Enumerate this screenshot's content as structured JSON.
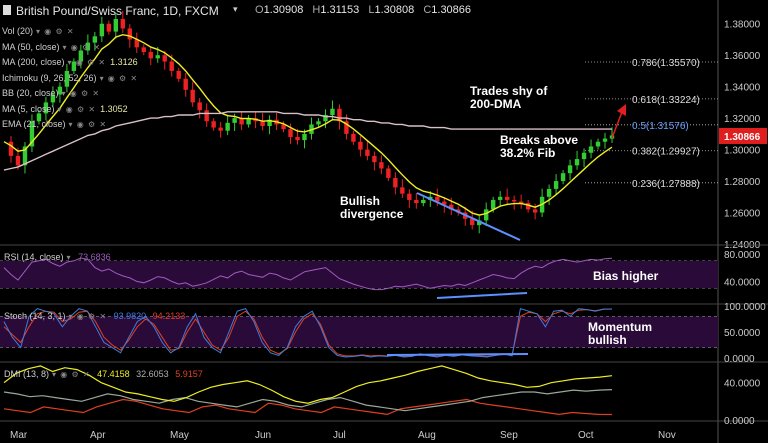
{
  "header": {
    "symbol": "British Pound/Swiss Franc, 1D, FXCM",
    "o_label": "O",
    "o": "1.30908",
    "h_label": "H",
    "h": "1.31153",
    "l_label": "L",
    "l": "1.30808",
    "c_label": "C",
    "c": "1.30866"
  },
  "indicators": [
    {
      "label": "Vol (20)",
      "value": ""
    },
    {
      "label": "MA (50, close)",
      "value": ""
    },
    {
      "label": "MA (200, close)",
      "value": "1.3126"
    },
    {
      "label": "Ichimoku (9, 26, 52, 26)",
      "value": ""
    },
    {
      "label": "BB (20, close)",
      "value": ""
    },
    {
      "label": "MA (5, close)",
      "value": "1.3052"
    },
    {
      "label": "EMA (21, close)",
      "value": ""
    }
  ],
  "colors": {
    "up": "#33cc33",
    "down": "#ee2222",
    "ma200": "#d8c0c8",
    "ema": "#eeee22",
    "fib": "#bbbbbb",
    "price_badge": "#e01e1e",
    "rsi": "#a05cc0",
    "stoch_k": "#3d7de0",
    "stoch_d": "#e04020",
    "pane_bg": "#2a0a38",
    "trend": "#5c8fff"
  },
  "annotations": {
    "shy_1": "Trades shy of",
    "shy_2": "200-DMA",
    "breaks_1": "Breaks above",
    "breaks_2": "38.2% Fib",
    "bull_1": "Bullish",
    "bull_2": "divergence",
    "bias": "Bias higher",
    "mom_1": "Momentum",
    "mom_2": "bullish"
  },
  "rsi": {
    "label": "RSI (14, close)",
    "value": "73.6836"
  },
  "stoch": {
    "label": "Stoch (14, 3, 1)",
    "k": "93.9820",
    "d": "94.2133"
  },
  "dmi": {
    "label": "DMI (13, 8)",
    "adx": "47.4158",
    "plus": "32.6053",
    "minus": "5.9157"
  },
  "chart_data": {
    "type": "candlestick",
    "x_ticks": [
      "Mar",
      "Apr",
      "May",
      "Jun",
      "Jul",
      "Aug",
      "Sep",
      "Oct",
      "Nov"
    ],
    "price_axis": [
      "1.38000",
      "1.36000",
      "1.34000",
      "1.32000",
      "1.30000",
      "1.28000",
      "1.26000",
      "1.24000"
    ],
    "current_price": "1.30866",
    "ylim": [
      1.24,
      1.39
    ],
    "fib_levels": [
      {
        "label": "0.786(1.35570)",
        "value": 1.3557
      },
      {
        "label": "0.618(1.33224)",
        "value": 1.33224
      },
      {
        "label": "0.5(1.31576)",
        "value": 1.31576
      },
      {
        "label": "0.382(1.29927)",
        "value": 1.29927
      },
      {
        "label": "0.236(1.27888)",
        "value": 1.27888
      }
    ],
    "close_path": [
      1.305,
      1.296,
      1.29,
      1.302,
      1.318,
      1.323,
      1.33,
      1.335,
      1.34,
      1.35,
      1.356,
      1.363,
      1.368,
      1.372,
      1.38,
      1.375,
      1.383,
      1.377,
      1.37,
      1.365,
      1.362,
      1.358,
      1.36,
      1.356,
      1.35,
      1.345,
      1.338,
      1.33,
      1.325,
      1.318,
      1.314,
      1.312,
      1.317,
      1.32,
      1.316,
      1.32,
      1.318,
      1.315,
      1.319,
      1.316,
      1.313,
      1.308,
      1.306,
      1.31,
      1.316,
      1.318,
      1.322,
      1.326,
      1.318,
      1.31,
      1.305,
      1.3,
      1.296,
      1.292,
      1.288,
      1.282,
      1.276,
      1.272,
      1.268,
      1.266,
      1.268,
      1.27,
      1.267,
      1.265,
      1.262,
      1.26,
      1.256,
      1.252,
      1.255,
      1.262,
      1.268,
      1.27,
      1.268,
      1.267,
      1.266,
      1.262,
      1.26,
      1.27,
      1.275,
      1.28,
      1.285,
      1.29,
      1.294,
      1.298,
      1.302,
      1.305,
      1.307,
      1.309
    ],
    "ma200_path": [
      1.287,
      1.288,
      1.289,
      1.291,
      1.293,
      1.295,
      1.297,
      1.299,
      1.301,
      1.303,
      1.305,
      1.307,
      1.309,
      1.31,
      1.312,
      1.313,
      1.315,
      1.316,
      1.317,
      1.318,
      1.319,
      1.32,
      1.32,
      1.321,
      1.321,
      1.322,
      1.322,
      1.322,
      1.323,
      1.323,
      1.323,
      1.323,
      1.324,
      1.324,
      1.324,
      1.324,
      1.324,
      1.324,
      1.324,
      1.324,
      1.323,
      1.323,
      1.323,
      1.322,
      1.322,
      1.322,
      1.321,
      1.321,
      1.32,
      1.32,
      1.319,
      1.319,
      1.318,
      1.318,
      1.317,
      1.317,
      1.316,
      1.316,
      1.315,
      1.315,
      1.315,
      1.314,
      1.314,
      1.314,
      1.313,
      1.313,
      1.313,
      1.313,
      1.313,
      1.313,
      1.313,
      1.313,
      1.313,
      1.313,
      1.313,
      1.313,
      1.313,
      1.313,
      1.313,
      1.313,
      1.313,
      1.313,
      1.313,
      1.313,
      1.313,
      1.313,
      1.313,
      1.313
    ],
    "rsi_axis": [
      "80.0000",
      "40.0000"
    ],
    "rsi_path": [
      60,
      50,
      42,
      55,
      68,
      70,
      72,
      66,
      62,
      68,
      70,
      74,
      72,
      60,
      55,
      58,
      52,
      48,
      45,
      40,
      38,
      42,
      47,
      45,
      40,
      36,
      38,
      33,
      35,
      38,
      43,
      48,
      45,
      52,
      55,
      50,
      48,
      46,
      52,
      50,
      45,
      42,
      48,
      54,
      56,
      58,
      60,
      52,
      44,
      40,
      36,
      33,
      30,
      28,
      28,
      30,
      33,
      32,
      34,
      36,
      33,
      30,
      32,
      34,
      33,
      36,
      34,
      38,
      42,
      46,
      50,
      48,
      45,
      44,
      52,
      58,
      62,
      60,
      66,
      70,
      72,
      70,
      68,
      70,
      72,
      71,
      73,
      73.6836
    ],
    "stoch_axis": [
      "100.0000",
      "50.0000",
      "0.0000"
    ],
    "stoch_k_path": [
      70,
      40,
      20,
      80,
      95,
      90,
      85,
      60,
      80,
      95,
      90,
      60,
      30,
      20,
      10,
      40,
      70,
      80,
      60,
      30,
      10,
      20,
      60,
      85,
      40,
      20,
      10,
      50,
      90,
      95,
      70,
      30,
      10,
      5,
      20,
      60,
      80,
      90,
      60,
      20,
      5,
      2,
      3,
      5,
      2,
      4,
      3,
      5,
      2,
      3,
      8,
      4,
      2,
      5,
      3,
      6,
      4,
      3,
      2,
      5,
      8,
      4,
      95,
      90,
      85,
      60,
      90,
      92,
      80,
      95,
      93,
      90,
      94,
      93.982
    ],
    "stoch_d_path": [
      60,
      45,
      30,
      60,
      85,
      90,
      88,
      70,
      75,
      88,
      90,
      70,
      40,
      25,
      15,
      35,
      60,
      75,
      65,
      40,
      15,
      18,
      50,
      75,
      50,
      25,
      15,
      40,
      80,
      90,
      75,
      40,
      15,
      8,
      18,
      50,
      75,
      85,
      65,
      25,
      8,
      4,
      4,
      6,
      4,
      5,
      4,
      5,
      3,
      4,
      7,
      5,
      3,
      5,
      4,
      6,
      5,
      4,
      3,
      5,
      7,
      6,
      80,
      88,
      85,
      70,
      85,
      90,
      85,
      92,
      93,
      91,
      94,
      94.2133
    ],
    "dmi_axis": [
      "40.0000",
      "0.0000"
    ],
    "adx_path": [
      40,
      50,
      55,
      58,
      52,
      56,
      54,
      48,
      40,
      35,
      30,
      28,
      25,
      22,
      20,
      24,
      30,
      35,
      38,
      40,
      42,
      38,
      32,
      25,
      20,
      18,
      22,
      24,
      30,
      36,
      40,
      42,
      45,
      48,
      52,
      55,
      58,
      54,
      50,
      45,
      42,
      40,
      38,
      35,
      36,
      40,
      42,
      44,
      45,
      46,
      47.4158
    ],
    "plus_path": [
      30,
      28,
      25,
      26,
      24,
      22,
      20,
      24,
      28,
      26,
      22,
      20,
      18,
      22,
      24,
      20,
      18,
      16,
      14,
      18,
      22,
      20,
      16,
      14,
      18,
      22,
      24,
      20,
      16,
      14,
      12,
      10,
      12,
      14,
      16,
      18,
      20,
      24,
      26,
      28,
      30,
      30,
      28,
      30,
      32,
      31,
      32,
      32.6053
    ],
    "minus_path": [
      12,
      10,
      8,
      14,
      12,
      10,
      8,
      14,
      18,
      22,
      20,
      16,
      12,
      10,
      8,
      14,
      16,
      12,
      10,
      8,
      18,
      16,
      12,
      10,
      8,
      14,
      12,
      10,
      8,
      6,
      12,
      14,
      16,
      18,
      20,
      22,
      18,
      16,
      14,
      12,
      10,
      8,
      6,
      8,
      7,
      6,
      5.9157
    ]
  }
}
